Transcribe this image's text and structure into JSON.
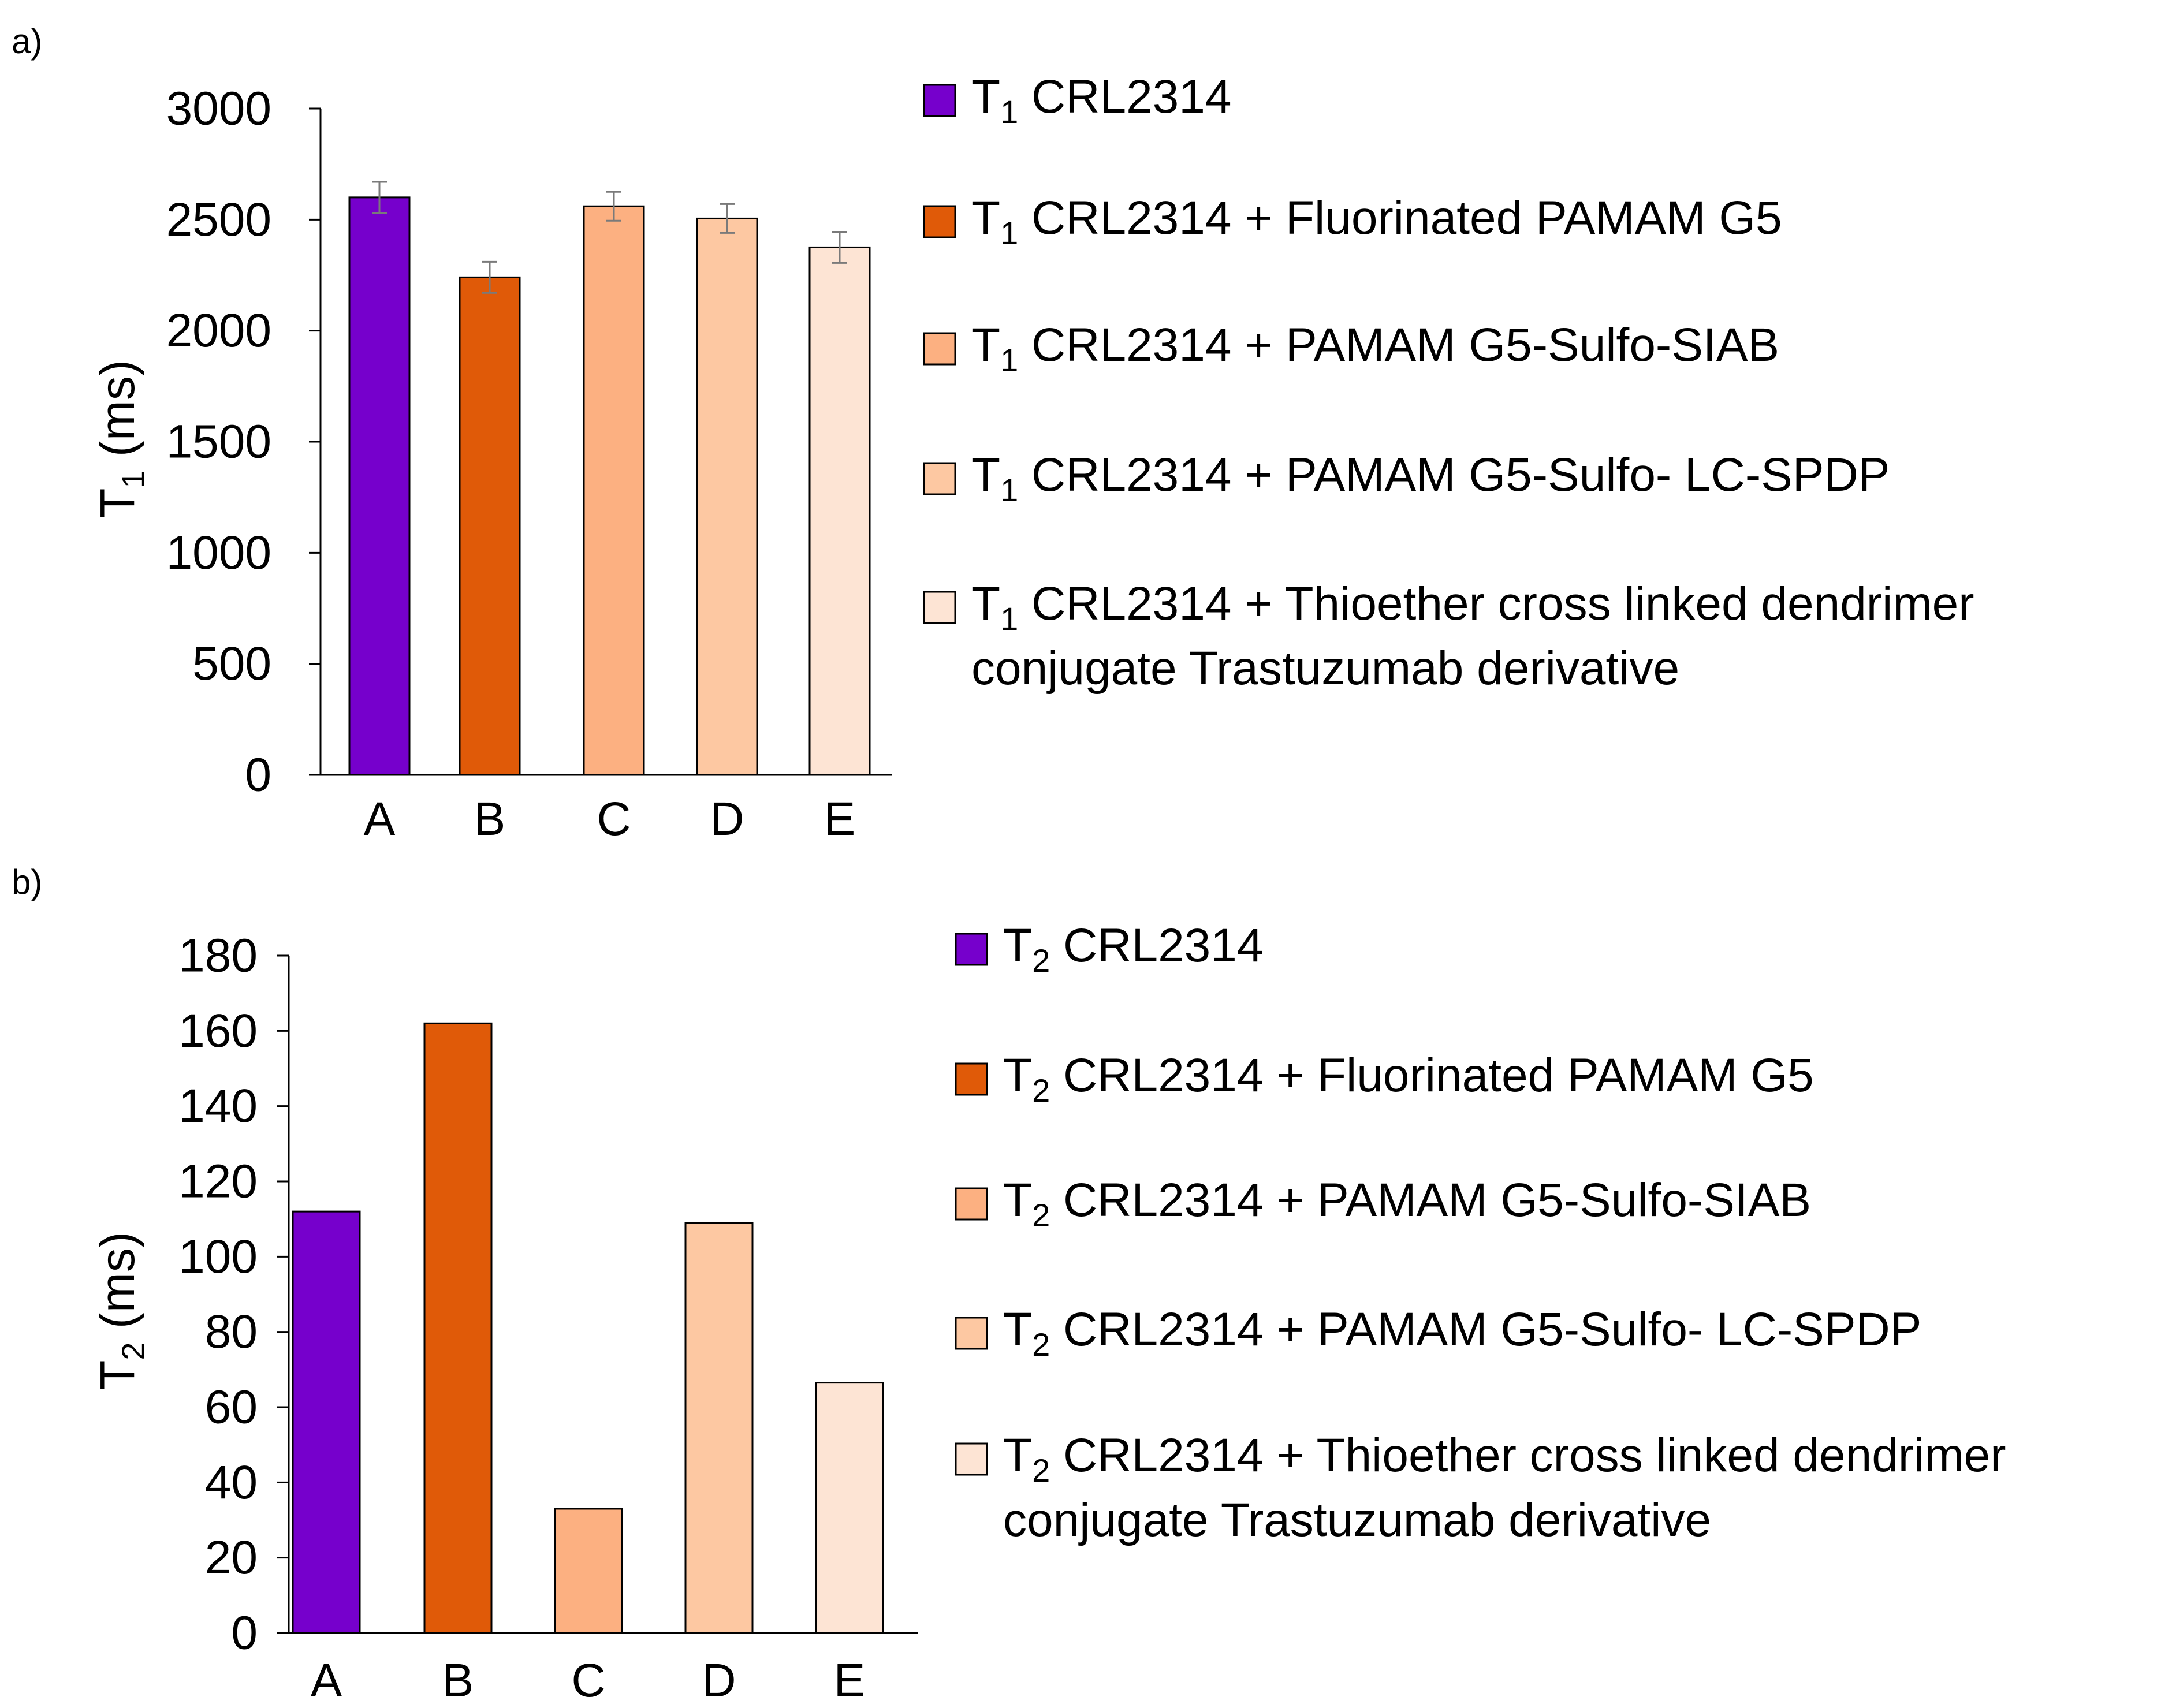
{
  "chart_data": [
    {
      "type": "bar",
      "panel_label": "a)",
      "ylabel_main": "T",
      "ylabel_sub": "1",
      "ylabel_unit": " (ms)",
      "ylim": [
        0,
        3000
      ],
      "yticks": [
        "0",
        "500",
        "1000",
        "1500",
        "2000",
        "2500",
        "3000"
      ],
      "categories": [
        "A",
        "B",
        "C",
        "D",
        "E"
      ],
      "values": [
        2600,
        2240,
        2560,
        2505,
        2375
      ],
      "errors": [
        70,
        70,
        65,
        65,
        70
      ],
      "colors": [
        "#7600cc",
        "#e05a08",
        "#fcb081",
        "#fdc8a2",
        "#fde4d4"
      ],
      "legend": [
        {
          "main": "T",
          "sub": "1",
          "lines": [
            " CRL2314"
          ]
        },
        {
          "main": "T",
          "sub": "1",
          "lines": [
            " CRL2314 + Fluorinated PAMAM G5"
          ]
        },
        {
          "main": "T",
          "sub": "1",
          "lines": [
            " CRL2314 + PAMAM G5-Sulfo-SIAB"
          ]
        },
        {
          "main": "T",
          "sub": "1",
          "lines": [
            " CRL2314 + PAMAM G5-Sulfo- LC-SPDP"
          ]
        },
        {
          "main": "T",
          "sub": "1",
          "lines": [
            " CRL2314 + Thioether cross linked dendrimer",
            "conjugate Trastuzumab derivative"
          ]
        }
      ]
    },
    {
      "type": "bar",
      "panel_label": "b)",
      "ylabel_main": "T",
      "ylabel_sub": "2",
      "ylabel_unit": " (ms)",
      "ylim": [
        0,
        180
      ],
      "yticks": [
        "0",
        "20",
        "40",
        "60",
        "80",
        "100",
        "120",
        "140",
        "160",
        "180"
      ],
      "categories": [
        "A",
        "B",
        "C",
        "D",
        "E"
      ],
      "values": [
        112,
        162,
        33,
        109,
        66.5
      ],
      "colors": [
        "#7600cc",
        "#e05a08",
        "#fcb081",
        "#fdc8a2",
        "#fde4d4"
      ],
      "legend": [
        {
          "main": "T",
          "sub": "2",
          "lines": [
            " CRL2314"
          ]
        },
        {
          "main": "T",
          "sub": "2",
          "lines": [
            " CRL2314 + Fluorinated PAMAM G5"
          ]
        },
        {
          "main": "T",
          "sub": "2",
          "lines": [
            " CRL2314 + PAMAM G5-Sulfo-SIAB"
          ]
        },
        {
          "main": "T",
          "sub": "2",
          "lines": [
            " CRL2314 + PAMAM G5-Sulfo- LC-SPDP"
          ]
        },
        {
          "main": "T",
          "sub": "2",
          "lines": [
            " CRL2314 + Thioether cross linked dendrimer",
            "conjugate Trastuzumab derivative"
          ]
        }
      ]
    }
  ]
}
